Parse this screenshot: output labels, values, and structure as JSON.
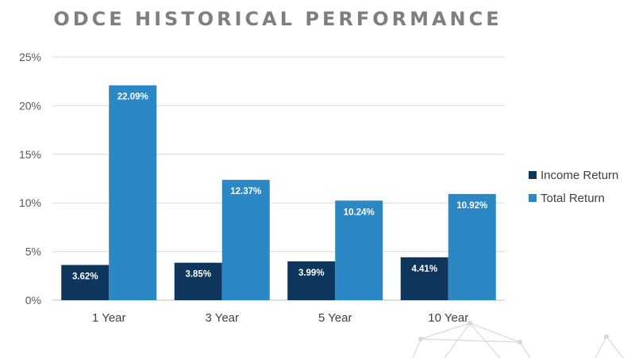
{
  "chart_data": {
    "type": "bar",
    "title": "ODCE HISTORICAL PERFORMANCE",
    "categories": [
      "1 Year",
      "3 Year",
      "5 Year",
      "10 Year"
    ],
    "series": [
      {
        "name": "Income Return",
        "color": "#0e355c",
        "values": [
          3.62,
          3.85,
          3.99,
          4.41
        ],
        "labels": [
          "3.62%",
          "3.85%",
          "3.99%",
          "4.41%"
        ]
      },
      {
        "name": "Total Return",
        "color": "#2b88c4",
        "values": [
          22.09,
          12.37,
          10.24,
          10.92
        ],
        "labels": [
          "22.09%",
          "12.37%",
          "10.24%",
          "10.92%"
        ]
      }
    ],
    "ylim": [
      0,
      25
    ],
    "yticks": [
      "0%",
      "5%",
      "10%",
      "15%",
      "20%",
      "25%"
    ],
    "grid": true,
    "legend": "right"
  }
}
